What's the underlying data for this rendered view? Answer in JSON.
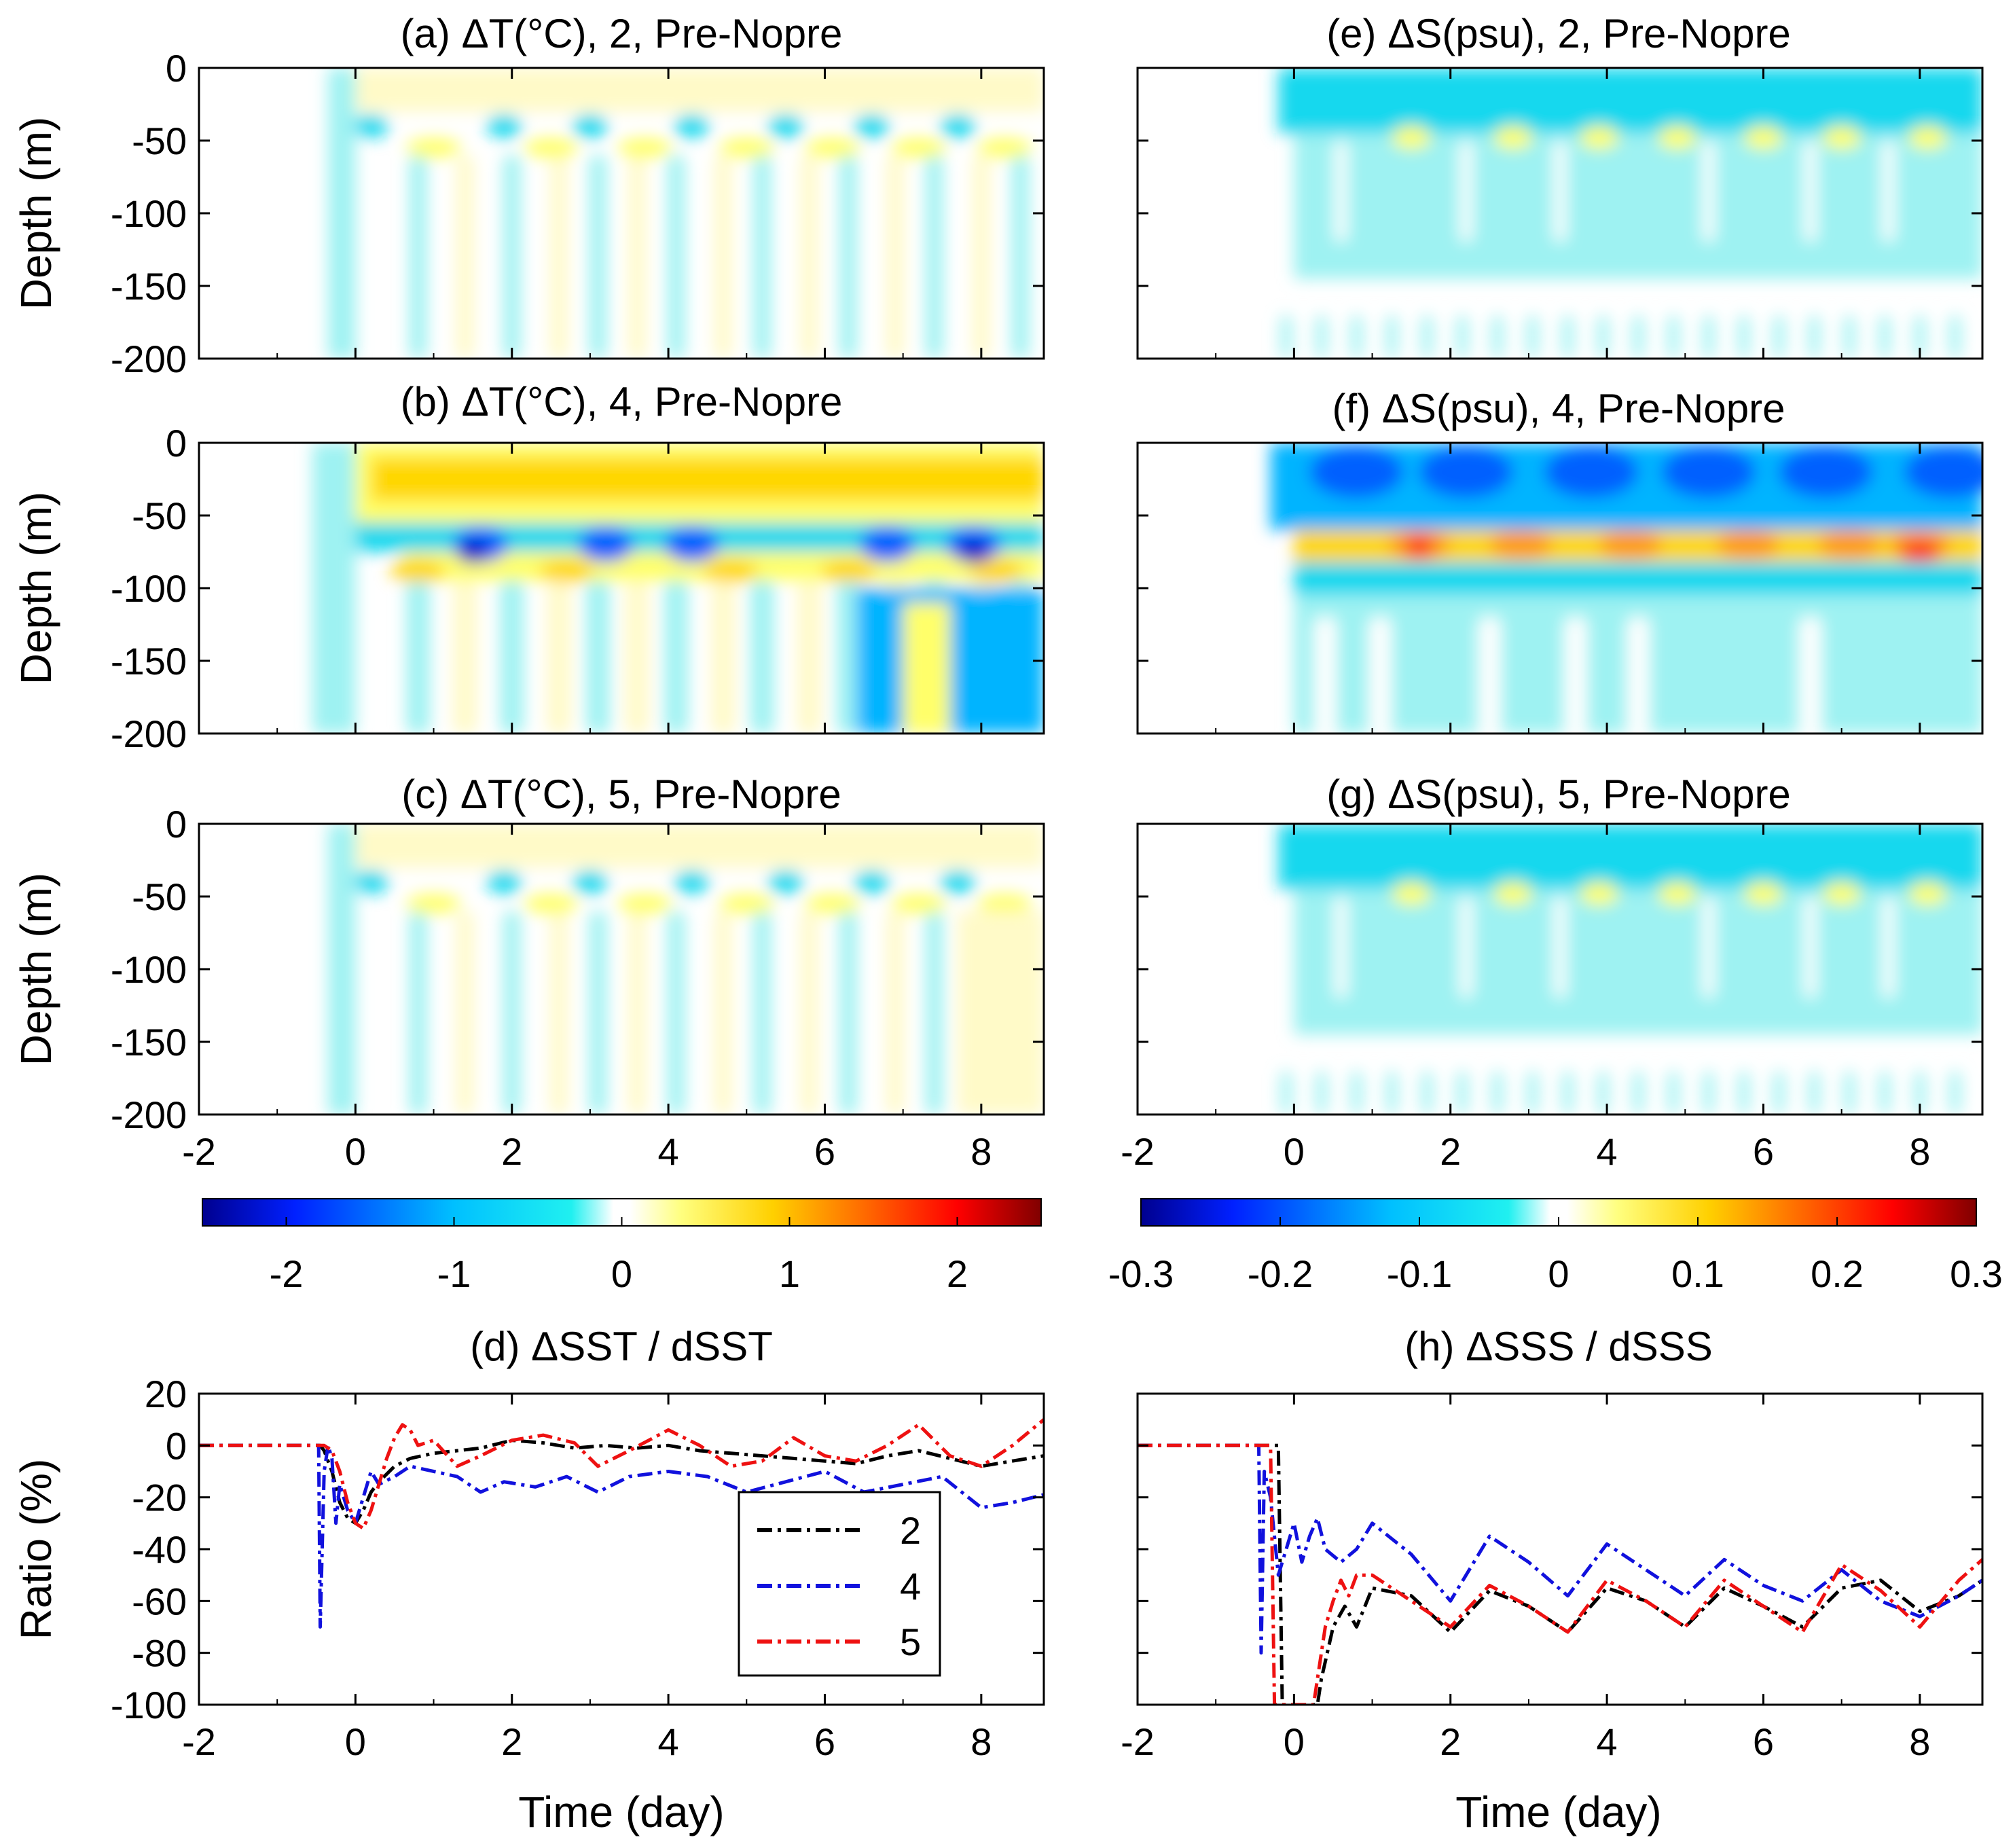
{
  "figure": {
    "temperature_colorbar": {
      "ticks": [
        "-2",
        "-1",
        "0",
        "1",
        "2"
      ],
      "range": [
        -2.5,
        2.5
      ]
    },
    "salinity_colorbar": {
      "ticks": [
        "-0.3",
        "-0.2",
        "-0.1",
        "0",
        "0.1",
        "0.2",
        "0.3"
      ],
      "range": [
        -0.3,
        0.3
      ]
    },
    "shared_time_ticks": [
      "-2",
      "0",
      "2",
      "4",
      "6",
      "8"
    ],
    "depth_ticks": [
      "0",
      "-50",
      "-100",
      "-150",
      "-200"
    ],
    "ratio_ticks": [
      "20",
      "0",
      "-20",
      "-40",
      "-60",
      "-80",
      "-100"
    ],
    "depth_label": "Depth (m)",
    "ratio_label": "Ratio (%)",
    "time_label": "Time (day)"
  },
  "chart_data": [
    {
      "id": "a",
      "type": "heatmap",
      "title": "(a) ΔT(°C), 2, Pre-Nopre",
      "ylabel": "Depth (m)",
      "xlim": [
        -2,
        8.8
      ],
      "ylim": [
        -200,
        0
      ],
      "variable": "temperature"
    },
    {
      "id": "b",
      "type": "heatmap",
      "title": "(b) ΔT(°C), 4, Pre-Nopre",
      "ylabel": "Depth (m)",
      "xlim": [
        -2,
        8.8
      ],
      "ylim": [
        -200,
        0
      ],
      "variable": "temperature"
    },
    {
      "id": "c",
      "type": "heatmap",
      "title": "(c) ΔT(°C), 5, Pre-Nopre",
      "ylabel": "Depth (m)",
      "xlim": [
        -2,
        8.8
      ],
      "ylim": [
        -200,
        0
      ],
      "variable": "temperature"
    },
    {
      "id": "e",
      "type": "heatmap",
      "title": "(e) ΔS(psu), 2, Pre-Nopre",
      "ylabel": "",
      "xlim": [
        -2,
        8.8
      ],
      "ylim": [
        -200,
        0
      ],
      "variable": "salinity"
    },
    {
      "id": "f",
      "type": "heatmap",
      "title": "(f) ΔS(psu), 4, Pre-Nopre",
      "ylabel": "",
      "xlim": [
        -2,
        8.8
      ],
      "ylim": [
        -200,
        0
      ],
      "variable": "salinity"
    },
    {
      "id": "g",
      "type": "heatmap",
      "title": "(g) ΔS(psu), 5, Pre-Nopre",
      "ylabel": "",
      "xlim": [
        -2,
        8.8
      ],
      "ylim": [
        -200,
        0
      ],
      "variable": "salinity"
    },
    {
      "id": "d",
      "type": "line",
      "title": "(d) ΔSST / dSST",
      "xlabel": "Time (day)",
      "ylabel": "Ratio (%)",
      "xlim": [
        -2,
        8.8
      ],
      "ylim": [
        -100,
        20
      ],
      "legend": "inside-center-right",
      "series": [
        {
          "name": "2",
          "color": "#000000",
          "x": [
            -2,
            -0.45,
            -0.4,
            -0.3,
            -0.2,
            -0.1,
            0,
            0.1,
            0.2,
            0.3,
            0.5,
            0.7,
            1,
            1.3,
            1.6,
            2,
            2.4,
            2.8,
            3.2,
            3.6,
            4,
            4.4,
            4.8,
            5.2,
            5.6,
            6,
            6.4,
            6.8,
            7.2,
            7.6,
            8,
            8.4,
            8.8
          ],
          "y": [
            0,
            0,
            -2,
            -10,
            -22,
            -28,
            -30,
            -25,
            -18,
            -14,
            -8,
            -5,
            -3,
            -2,
            -1,
            2,
            1,
            -1,
            0,
            -1,
            0,
            -2,
            -3,
            -4,
            -5,
            -6,
            -7,
            -4,
            -2,
            -5,
            -8,
            -6,
            -4
          ]
        },
        {
          "name": "4",
          "color": "#1111dd",
          "x": [
            -2,
            -0.47,
            -0.45,
            -0.4,
            -0.35,
            -0.3,
            -0.25,
            -0.2,
            -0.1,
            0,
            0.1,
            0.2,
            0.3,
            0.5,
            0.7,
            1,
            1.3,
            1.6,
            1.9,
            2.3,
            2.7,
            3.1,
            3.5,
            4,
            4.5,
            5,
            5.5,
            6,
            6.5,
            7,
            7.5,
            8,
            8.4,
            8.8
          ],
          "y": [
            0,
            0,
            -70,
            -10,
            0,
            -5,
            -30,
            -15,
            -25,
            -30,
            -20,
            -10,
            -15,
            -12,
            -8,
            -10,
            -12,
            -18,
            -14,
            -16,
            -12,
            -18,
            -12,
            -10,
            -12,
            -18,
            -14,
            -10,
            -18,
            -15,
            -12,
            -24,
            -22,
            -19
          ]
        },
        {
          "name": "5",
          "color": "#ee1111",
          "x": [
            -2,
            -0.4,
            -0.3,
            -0.2,
            -0.1,
            0,
            0.1,
            0.2,
            0.3,
            0.4,
            0.5,
            0.6,
            0.7,
            0.8,
            1,
            1.3,
            1.6,
            2,
            2.4,
            2.8,
            3.1,
            3.5,
            4,
            4.4,
            4.8,
            5.2,
            5.6,
            6,
            6.4,
            6.8,
            7.2,
            7.6,
            8,
            8.4,
            8.8
          ],
          "y": [
            0,
            0,
            -2,
            -10,
            -22,
            -30,
            -32,
            -25,
            -15,
            -5,
            3,
            8,
            6,
            0,
            2,
            -8,
            -4,
            2,
            4,
            1,
            -8,
            -2,
            6,
            0,
            -8,
            -6,
            3,
            -4,
            -6,
            0,
            8,
            -4,
            -8,
            0,
            10
          ]
        }
      ]
    },
    {
      "id": "h",
      "type": "line",
      "title": "(h) ΔSSS / dSSS",
      "xlabel": "Time (day)",
      "ylabel": "",
      "xlim": [
        -2,
        8.8
      ],
      "ylim": [
        -100,
        20
      ],
      "series": [
        {
          "name": "2",
          "color": "#000000",
          "x": [
            -2,
            -0.2,
            -0.15,
            -0.1,
            0.3,
            0.35,
            0.5,
            0.65,
            0.8,
            1,
            1.5,
            2,
            2.5,
            3,
            3.5,
            4,
            4.5,
            5,
            5.5,
            6,
            6.5,
            7,
            7.5,
            8,
            8.5,
            8.8
          ],
          "y": [
            0,
            0,
            -100,
            -100,
            -100,
            -90,
            -70,
            -62,
            -70,
            -55,
            -58,
            -72,
            -56,
            -62,
            -72,
            -55,
            -60,
            -70,
            -55,
            -62,
            -70,
            -55,
            -52,
            -64,
            -58,
            -52
          ]
        },
        {
          "name": "4",
          "color": "#1111dd",
          "x": [
            -2,
            -0.45,
            -0.42,
            -0.38,
            -0.3,
            -0.2,
            -0.1,
            0,
            0.1,
            0.2,
            0.3,
            0.4,
            0.6,
            0.8,
            1,
            1.5,
            2,
            2.5,
            3,
            3.5,
            4,
            4.5,
            5,
            5.5,
            6,
            6.5,
            7,
            7.5,
            8,
            8.5,
            8.8
          ],
          "y": [
            0,
            0,
            -80,
            -10,
            -20,
            -50,
            -40,
            -30,
            -45,
            -35,
            -28,
            -40,
            -45,
            -40,
            -30,
            -42,
            -60,
            -35,
            -45,
            -58,
            -38,
            -48,
            -58,
            -44,
            -54,
            -60,
            -48,
            -60,
            -66,
            -58,
            -52
          ]
        },
        {
          "name": "5",
          "color": "#ee1111",
          "x": [
            -2,
            -0.35,
            -0.3,
            -0.25,
            -0.2,
            0.25,
            0.3,
            0.4,
            0.5,
            0.6,
            0.7,
            0.8,
            1,
            1.5,
            2,
            2.5,
            3,
            3.5,
            4,
            4.5,
            5,
            5.5,
            6,
            6.5,
            7,
            7.5,
            8,
            8.5,
            8.8
          ],
          "y": [
            0,
            0,
            0,
            -100,
            -100,
            -100,
            -90,
            -70,
            -60,
            -52,
            -58,
            -50,
            -50,
            -60,
            -70,
            -54,
            -62,
            -72,
            -52,
            -60,
            -70,
            -52,
            -62,
            -72,
            -46,
            -56,
            -70,
            -52,
            -44
          ]
        }
      ]
    }
  ]
}
